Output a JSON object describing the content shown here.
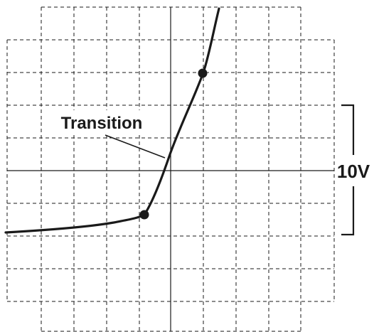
{
  "annotations": {
    "transition_label": "Transition",
    "scale_label": "10V"
  },
  "colors": {
    "background": "#ffffff",
    "grid": "#1a1a1a",
    "trace": "#1a1a1a"
  },
  "grid": {
    "major_divisions_x": 10,
    "major_divisions_y": 10,
    "line_style": "dashed",
    "center_axes": "solid"
  }
}
